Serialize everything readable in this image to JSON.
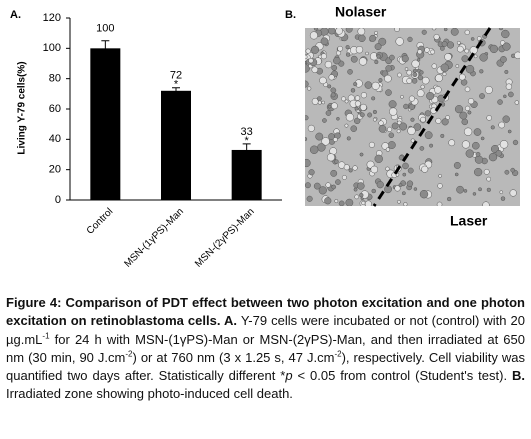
{
  "chart_data": {
    "type": "bar",
    "panel_label": "A.",
    "ylabel": "Living Y-79 cells(%)",
    "categories": [
      "Control",
      "MSN-(1γPS)-Man",
      "MSN-(2γPS)-Man"
    ],
    "values": [
      100,
      72,
      33
    ],
    "errors": [
      5,
      2,
      4
    ],
    "color": "#000000",
    "annotations": [
      {
        "text": "*",
        "category": "MSN-(1γPS)-Man"
      },
      {
        "text": "*",
        "category": "MSN-(2γPS)-Man"
      }
    ],
    "ylim": [
      0,
      120
    ],
    "yticks": [
      0,
      20,
      40,
      60,
      80,
      100,
      120
    ],
    "grid": false
  },
  "image_panel": {
    "panel_label": "B.",
    "top_label": "Nolaser",
    "bottom_label": "Laser"
  },
  "caption": [
    {
      "text": "Figure 4: Comparison of PDT effect between two photon excitation and one photon excitation on retinoblastoma cells.",
      "style": "bold"
    },
    {
      "text": " A.",
      "style": "bold"
    },
    {
      "text": " Y-79 cells were incubated or not (control) with 20 µg.mL"
    },
    {
      "text": "-1",
      "style": "sup"
    },
    {
      "text": " for 24 h with MSN-(1γPS)-Man or MSN-(2γPS)-Man, and then irradiated at 650 nm (30 min, 90 J.cm"
    },
    {
      "text": "-2",
      "style": "sup"
    },
    {
      "text": ") or at 760 nm (3 x 1.25 s, 47 J.cm"
    },
    {
      "text": "-2",
      "style": "sup"
    },
    {
      "text": "), respectively. Cell viability was quantified two days after. Statistically different *"
    },
    {
      "text": "p",
      "style": "italic"
    },
    {
      "text": " < 0.05 from control (Student's test)."
    },
    {
      "text": " B.",
      "style": "bold"
    },
    {
      "text": " Irradiated zone showing photo-induced cell death."
    }
  ]
}
